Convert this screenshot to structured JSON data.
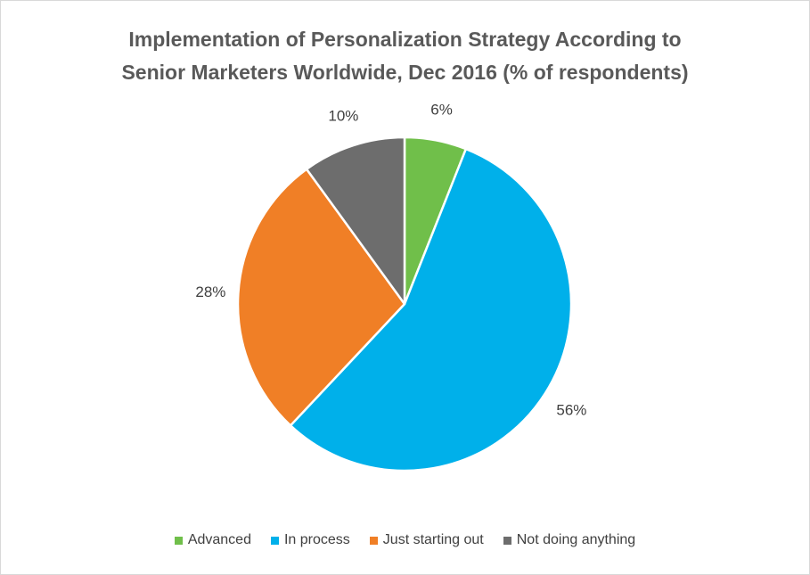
{
  "chart_data": {
    "type": "pie",
    "title_lines": [
      "Implementation of Personalization Strategy According to",
      "Senior Marketers Worldwide, Dec 2016 (% of respondents)"
    ],
    "categories": [
      "Advanced",
      "In process",
      "Just starting out",
      "Not doing anything"
    ],
    "values": [
      6,
      56,
      28,
      10
    ],
    "labels": [
      "6%",
      "56%",
      "28%",
      "10%"
    ],
    "colors": [
      "#70bf4a",
      "#00b0ea",
      "#f07f26",
      "#6d6d6d"
    ],
    "legend_position": "bottom",
    "start": "top, clockwise"
  }
}
